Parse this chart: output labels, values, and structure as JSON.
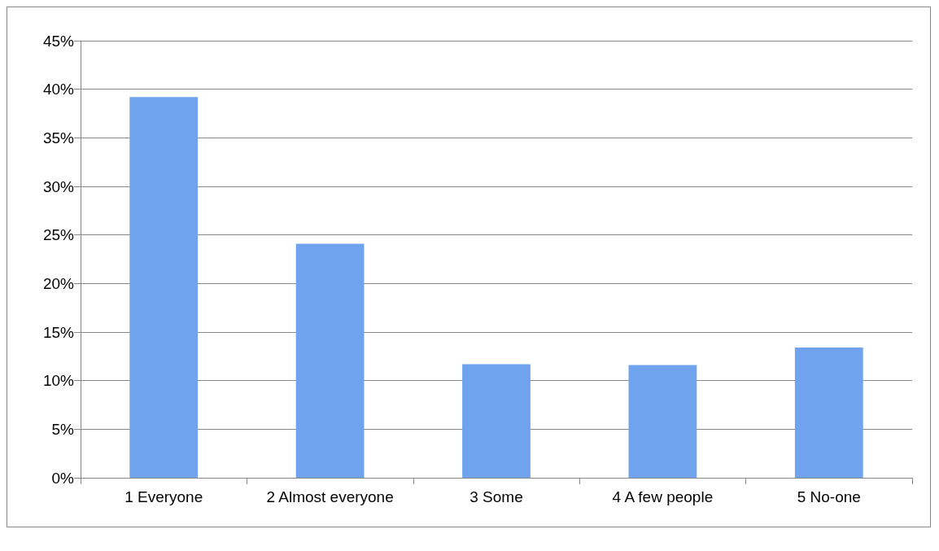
{
  "chart_data": {
    "type": "bar",
    "categories": [
      "1 Everyone",
      "2 Almost everyone",
      "3 Some",
      "4 A few people",
      "5 No-one"
    ],
    "values": [
      39.2,
      24.1,
      11.7,
      11.6,
      13.4
    ],
    "color": "#6fa3ee",
    "ylim": [
      0,
      45
    ],
    "yticks": [
      {
        "value": 0,
        "label": "0%"
      },
      {
        "value": 5,
        "label": "5%"
      },
      {
        "value": 10,
        "label": "10%"
      },
      {
        "value": 15,
        "label": "15%"
      },
      {
        "value": 20,
        "label": "20%"
      },
      {
        "value": 25,
        "label": "25%"
      },
      {
        "value": 30,
        "label": "30%"
      },
      {
        "value": 35,
        "label": "35%"
      },
      {
        "value": 40,
        "label": "40%"
      },
      {
        "value": 45,
        "label": "45%"
      }
    ],
    "grid": "y"
  }
}
